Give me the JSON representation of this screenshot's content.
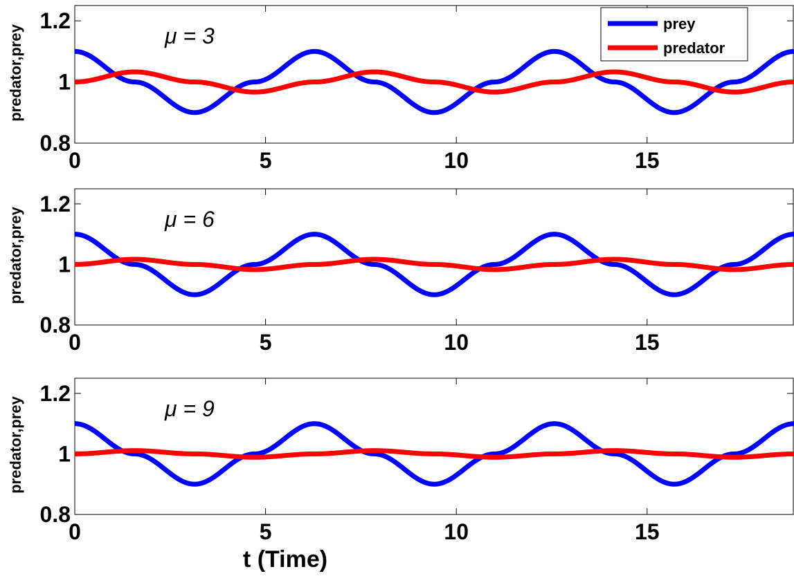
{
  "figure": {
    "xlabel": "t (Time)"
  },
  "legend": {
    "placement": "top-right",
    "entries": [
      {
        "label": "prey",
        "color": "#0000ff"
      },
      {
        "label": "predator",
        "color": "#ff0000"
      }
    ]
  },
  "chart_data": [
    {
      "type": "line",
      "annotation": "μ = 3",
      "ylabel": "predator,prey",
      "xlim": [
        0,
        18.85
      ],
      "ylim": [
        0.8,
        1.25
      ],
      "xticks": [
        "0",
        "5",
        "10",
        "15"
      ],
      "yticks": [
        "0.8",
        "1",
        "1.2"
      ],
      "grid": false,
      "legend": true,
      "series": [
        {
          "name": "prey",
          "color": "#0000ff",
          "x": [
            0,
            1.57,
            3.14,
            4.71,
            6.28,
            7.85,
            9.42,
            11.0,
            12.57,
            14.14,
            15.71,
            17.28,
            18.85
          ],
          "y": [
            1.1,
            1.0,
            0.9,
            1.0,
            1.1,
            1.0,
            0.9,
            1.0,
            1.1,
            1.0,
            0.9,
            1.0,
            1.1
          ]
        },
        {
          "name": "predator",
          "color": "#ff0000",
          "x": [
            0,
            1.57,
            3.14,
            4.71,
            6.28,
            7.85,
            9.42,
            11.0,
            12.57,
            14.14,
            15.71,
            17.28,
            18.85
          ],
          "y": [
            1.0,
            1.033,
            1.0,
            0.967,
            1.0,
            1.033,
            1.0,
            0.967,
            1.0,
            1.033,
            1.0,
            0.967,
            1.0
          ]
        }
      ]
    },
    {
      "type": "line",
      "annotation": "μ = 6",
      "ylabel": "predator,prey",
      "xlim": [
        0,
        18.85
      ],
      "ylim": [
        0.8,
        1.25
      ],
      "xticks": [
        "0",
        "5",
        "10",
        "15"
      ],
      "yticks": [
        "0.8",
        "1",
        "1.2"
      ],
      "grid": false,
      "legend": false,
      "series": [
        {
          "name": "prey",
          "color": "#0000ff",
          "x": [
            0,
            1.57,
            3.14,
            4.71,
            6.28,
            7.85,
            9.42,
            11.0,
            12.57,
            14.14,
            15.71,
            17.28,
            18.85
          ],
          "y": [
            1.1,
            1.0,
            0.9,
            1.0,
            1.1,
            1.0,
            0.9,
            1.0,
            1.1,
            1.0,
            0.9,
            1.0,
            1.1
          ]
        },
        {
          "name": "predator",
          "color": "#ff0000",
          "x": [
            0,
            1.57,
            3.14,
            4.71,
            6.28,
            7.85,
            9.42,
            11.0,
            12.57,
            14.14,
            15.71,
            17.28,
            18.85
          ],
          "y": [
            1.0,
            1.017,
            1.0,
            0.983,
            1.0,
            1.017,
            1.0,
            0.983,
            1.0,
            1.017,
            1.0,
            0.983,
            1.0
          ]
        }
      ]
    },
    {
      "type": "line",
      "annotation": "μ = 9",
      "ylabel": "predator,prey",
      "xlim": [
        0,
        18.85
      ],
      "ylim": [
        0.8,
        1.25
      ],
      "xticks": [
        "0",
        "5",
        "10",
        "15"
      ],
      "yticks": [
        "0.8",
        "1",
        "1.2"
      ],
      "grid": false,
      "legend": false,
      "series": [
        {
          "name": "prey",
          "color": "#0000ff",
          "x": [
            0,
            1.57,
            3.14,
            4.71,
            6.28,
            7.85,
            9.42,
            11.0,
            12.57,
            14.14,
            15.71,
            17.28,
            18.85
          ],
          "y": [
            1.1,
            1.0,
            0.9,
            1.0,
            1.1,
            1.0,
            0.9,
            1.0,
            1.1,
            1.0,
            0.9,
            1.0,
            1.1
          ]
        },
        {
          "name": "predator",
          "color": "#ff0000",
          "x": [
            0,
            1.57,
            3.14,
            4.71,
            6.28,
            7.85,
            9.42,
            11.0,
            12.57,
            14.14,
            15.71,
            17.28,
            18.85
          ],
          "y": [
            1.0,
            1.011,
            1.0,
            0.989,
            1.0,
            1.011,
            1.0,
            0.989,
            1.0,
            1.011,
            1.0,
            0.989,
            1.0
          ]
        }
      ]
    }
  ]
}
